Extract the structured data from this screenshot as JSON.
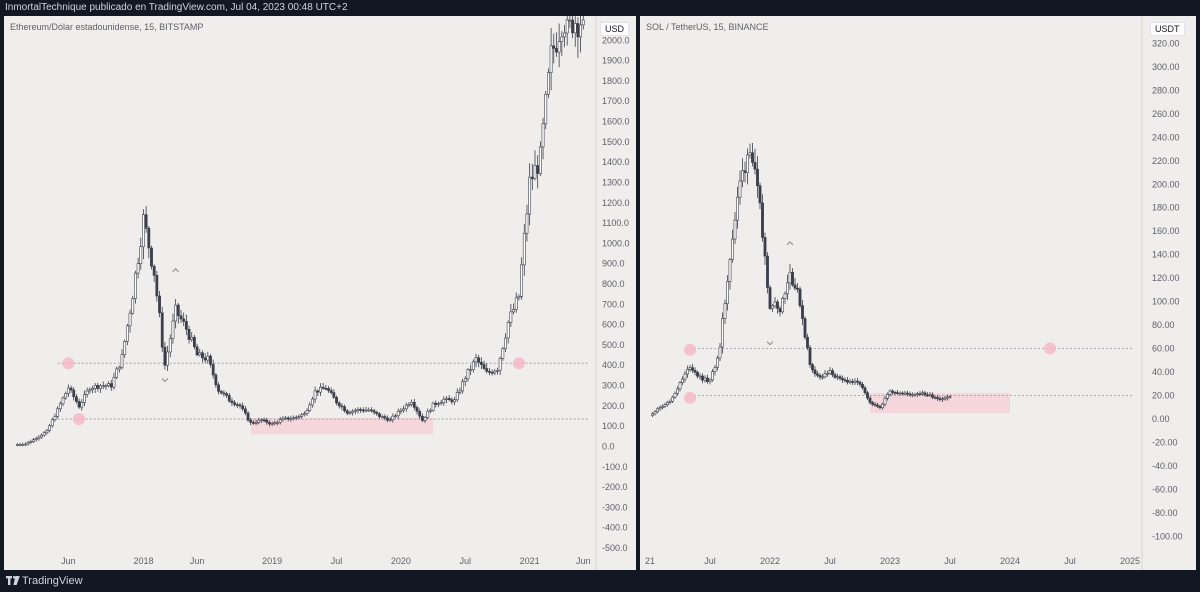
{
  "header": {
    "publisher_line": "InmortalTechnique publicado en TradingView.com, Jul 04, 2023 00:48 UTC+2"
  },
  "footer": {
    "brand": "TradingView",
    "logo_icon": "tradingview-logo-icon"
  },
  "colors": {
    "background": "#f0eeec",
    "frame": "#131722",
    "candle": "#3b3f4a",
    "highlight_circle": "#f4b8c8",
    "highlight_zone": "#f5d3d8",
    "level_line": "#9598a1",
    "axis_text": "#5d606b"
  },
  "chart_data": [
    {
      "type": "candlestick",
      "title": "Ethereum/Dólar estadounidense, 15, BITSTAMP",
      "unit": "USD",
      "x_ticks": [
        "Jun",
        "2018",
        "Jun",
        "2019",
        "Jul",
        "2020",
        "Jul",
        "2021",
        "Jun"
      ],
      "y_ticks": [
        2000.0,
        1900.0,
        1800.0,
        1700.0,
        1600.0,
        1500.0,
        1400.0,
        1300.0,
        1200.0,
        1100.0,
        1000.0,
        900.0,
        800.0,
        700.0,
        600.0,
        500.0,
        400.0,
        300.0,
        200.0,
        100.0,
        0.0,
        -100.0,
        -200.0,
        -300.0,
        -400.0,
        -500.0
      ],
      "ylim": [
        -500,
        2100
      ],
      "series_close": [
        [
          "2017-01",
          8
        ],
        [
          "2017-02",
          12
        ],
        [
          "2017-03",
          40
        ],
        [
          "2017-04",
          75
        ],
        [
          "2017-05",
          180
        ],
        [
          "2017-06",
          290
        ],
        [
          "2017-07",
          200
        ],
        [
          "2017-08",
          290
        ],
        [
          "2017-09",
          300
        ],
        [
          "2017-10",
          300
        ],
        [
          "2017-11",
          440
        ],
        [
          "2017-12",
          750
        ],
        [
          "2018-01",
          1120
        ],
        [
          "2018-02",
          860
        ],
        [
          "2018-03",
          400
        ],
        [
          "2018-04",
          670
        ],
        [
          "2018-05",
          580
        ],
        [
          "2018-06",
          450
        ],
        [
          "2018-07",
          430
        ],
        [
          "2018-08",
          280
        ],
        [
          "2018-09",
          230
        ],
        [
          "2018-10",
          200
        ],
        [
          "2018-11",
          115
        ],
        [
          "2018-12",
          130
        ],
        [
          "2019-01",
          110
        ],
        [
          "2019-02",
          135
        ],
        [
          "2019-03",
          140
        ],
        [
          "2019-04",
          160
        ],
        [
          "2019-05",
          270
        ],
        [
          "2019-06",
          290
        ],
        [
          "2019-07",
          220
        ],
        [
          "2019-08",
          170
        ],
        [
          "2019-09",
          180
        ],
        [
          "2019-10",
          180
        ],
        [
          "2019-11",
          150
        ],
        [
          "2019-12",
          130
        ],
        [
          "2020-01",
          180
        ],
        [
          "2020-02",
          225
        ],
        [
          "2020-03",
          130
        ],
        [
          "2020-04",
          205
        ],
        [
          "2020-05",
          230
        ],
        [
          "2020-06",
          225
        ],
        [
          "2020-07",
          340
        ],
        [
          "2020-08",
          430
        ],
        [
          "2020-09",
          360
        ],
        [
          "2020-10",
          385
        ],
        [
          "2020-11",
          610
        ],
        [
          "2020-12",
          740
        ],
        [
          "2021-01",
          1300
        ],
        [
          "2021-02",
          1420
        ],
        [
          "2021-03",
          1920
        ],
        [
          "2021-04",
          2100
        ],
        [
          "2021-05",
          2100
        ],
        [
          "2021-06",
          2100
        ]
      ],
      "marked_levels": [
        410,
        135
      ],
      "demand_zone": {
        "from": "2018-11",
        "to": "2020-04",
        "low": 60,
        "high": 140
      },
      "markers": [
        {
          "kind": "circle",
          "date": "2017-06",
          "price": 410
        },
        {
          "kind": "circle",
          "date": "2017-07",
          "price": 135
        },
        {
          "kind": "circle",
          "date": "2020-12",
          "price": 410
        },
        {
          "kind": "chevron-down",
          "date": "2018-03",
          "price": 330
        },
        {
          "kind": "chevron-up",
          "date": "2018-04",
          "price": 870
        }
      ]
    },
    {
      "type": "candlestick",
      "title": "SOL / TetherUS, 15, BINANCE",
      "unit": "USDT",
      "x_ticks": [
        "21",
        "Jul",
        "2022",
        "Jul",
        "2023",
        "Jul",
        "2024",
        "Jul",
        "2025"
      ],
      "y_ticks": [
        320.0,
        300.0,
        280.0,
        260.0,
        240.0,
        220.0,
        200.0,
        180.0,
        160.0,
        140.0,
        120.0,
        100.0,
        80.0,
        60.0,
        40.0,
        20.0,
        0.0,
        -20.0,
        -40.0,
        -60.0,
        -80.0,
        -100.0
      ],
      "ylim": [
        -110,
        340
      ],
      "series_close": [
        [
          "2021-01",
          3
        ],
        [
          "2021-02",
          10
        ],
        [
          "2021-03",
          15
        ],
        [
          "2021-04",
          30
        ],
        [
          "2021-05",
          45
        ],
        [
          "2021-06",
          35
        ],
        [
          "2021-07",
          32
        ],
        [
          "2021-08",
          60
        ],
        [
          "2021-09",
          140
        ],
        [
          "2021-10",
          200
        ],
        [
          "2021-11",
          235
        ],
        [
          "2021-12",
          175
        ],
        [
          "2022-01",
          100
        ],
        [
          "2022-02",
          95
        ],
        [
          "2022-03",
          125
        ],
        [
          "2022-04",
          100
        ],
        [
          "2022-05",
          45
        ],
        [
          "2022-06",
          35
        ],
        [
          "2022-07",
          40
        ],
        [
          "2022-08",
          33
        ],
        [
          "2022-09",
          32
        ],
        [
          "2022-10",
          30
        ],
        [
          "2022-11",
          13
        ],
        [
          "2022-12",
          10
        ],
        [
          "2023-01",
          24
        ],
        [
          "2023-02",
          22
        ],
        [
          "2023-03",
          21
        ],
        [
          "2023-04",
          22
        ],
        [
          "2023-05",
          20
        ],
        [
          "2023-06",
          17
        ],
        [
          "2023-07",
          19
        ]
      ],
      "marked_levels": [
        60,
        20
      ],
      "demand_zone": {
        "from": "2022-11",
        "to": "2024-01",
        "low": 5,
        "high": 22
      },
      "markers": [
        {
          "kind": "circle",
          "date": "2021-05",
          "price": 59
        },
        {
          "kind": "circle",
          "date": "2021-05",
          "price": 18
        },
        {
          "kind": "circle",
          "date": "2024-05",
          "price": 60
        },
        {
          "kind": "chevron-down",
          "date": "2022-01",
          "price": 65
        },
        {
          "kind": "chevron-up",
          "date": "2022-03",
          "price": 150
        }
      ]
    }
  ]
}
